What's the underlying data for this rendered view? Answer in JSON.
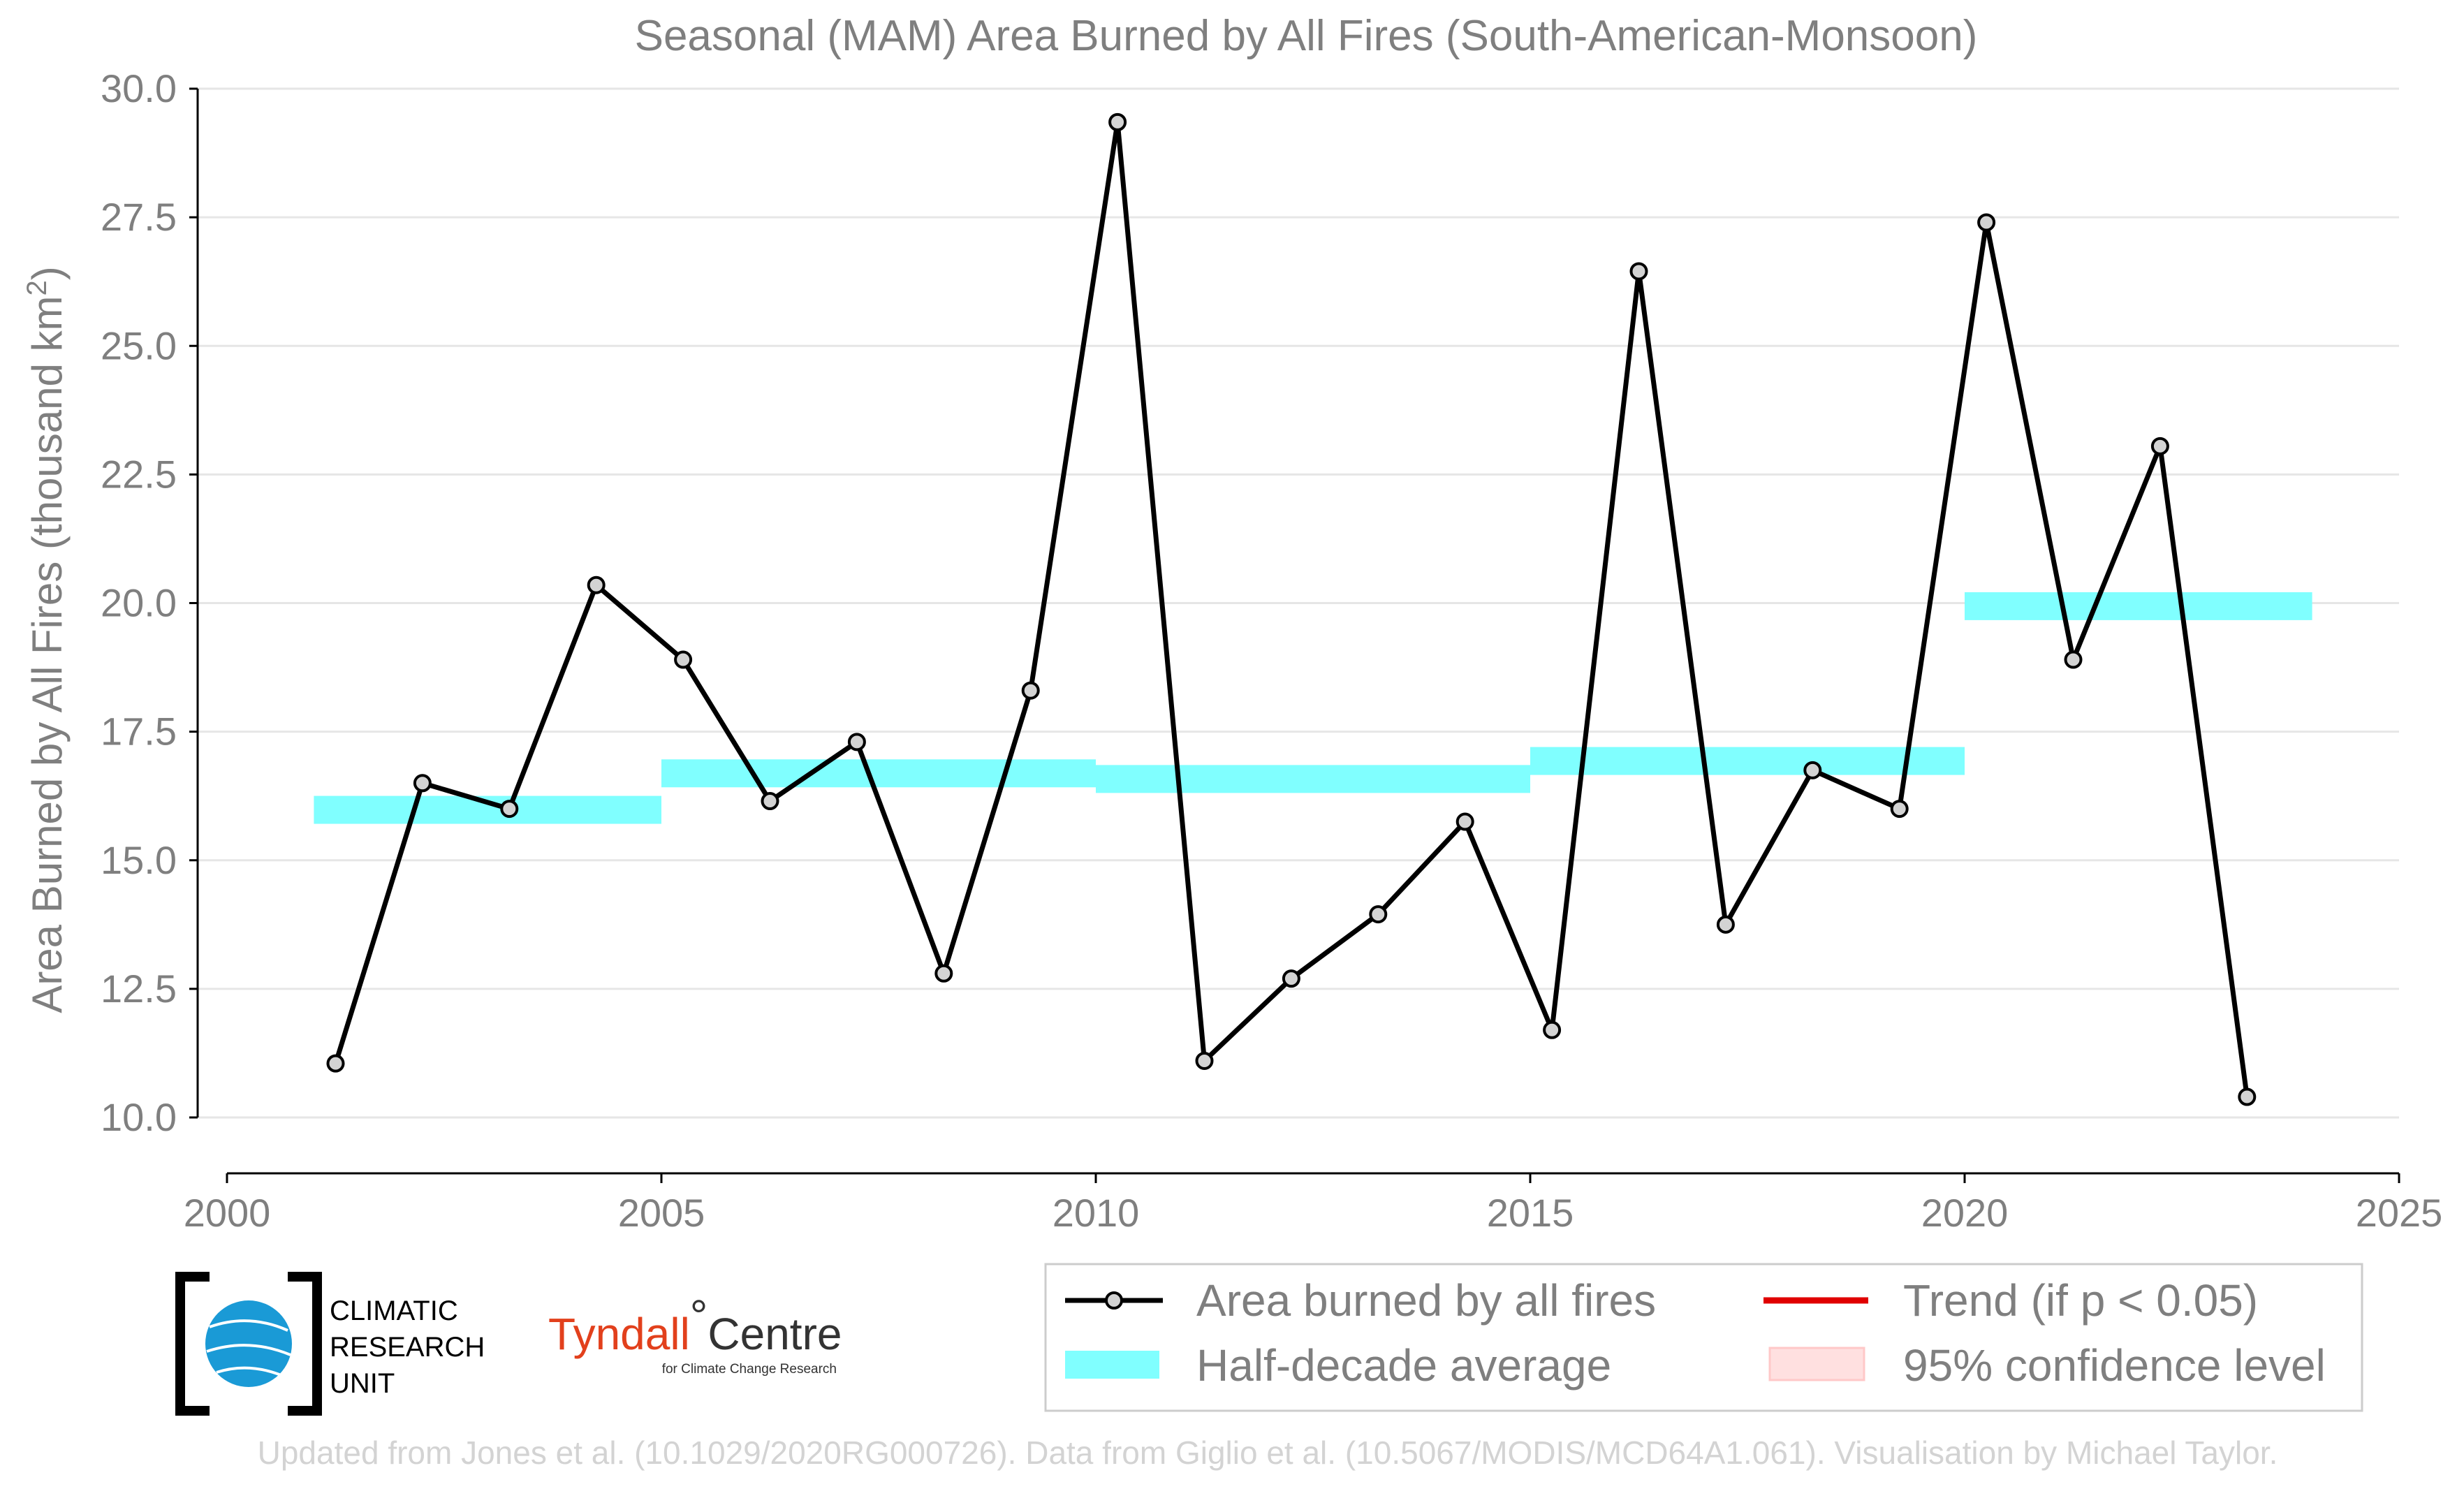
{
  "chart_data": {
    "type": "line",
    "title": "Seasonal (MAM) Area Burned by All Fires (South-American-Monsoon)",
    "xlabel": "",
    "ylabel": "Area Burned by All Fires (thousand km",
    "ylabel_superscript": "2",
    "ylabel_close": ")",
    "xlim": [
      2000,
      2025
    ],
    "ylim": [
      10.0,
      30.0
    ],
    "x_ticks": [
      2000,
      2005,
      2010,
      2015,
      2020,
      2025
    ],
    "y_ticks": [
      10.0,
      12.5,
      15.0,
      17.5,
      20.0,
      22.5,
      25.0,
      27.5,
      30.0
    ],
    "grid": "horizontal",
    "legend_position": "bottom-right",
    "series": [
      {
        "name": "Area burned by all fires",
        "color": "#000000",
        "x": [
          2001.25,
          2002.25,
          2003.25,
          2004.25,
          2005.25,
          2006.25,
          2007.25,
          2008.25,
          2009.25,
          2010.25,
          2011.25,
          2012.25,
          2013.25,
          2014.25,
          2015.25,
          2016.25,
          2017.25,
          2018.25,
          2019.25,
          2020.25,
          2021.25,
          2022.25,
          2023.25
        ],
        "values": [
          11.05,
          16.5,
          16.0,
          20.35,
          18.9,
          16.15,
          17.3,
          12.8,
          18.3,
          29.35,
          11.1,
          12.7,
          13.95,
          15.75,
          11.7,
          26.45,
          13.75,
          16.75,
          16.0,
          27.4,
          18.9,
          23.05,
          10.4
        ]
      }
    ],
    "half_decade_average": {
      "name": "Half-decade average",
      "color": "#80ffff",
      "segments": [
        {
          "x_start": 2001,
          "x_end": 2005,
          "value": 15.98
        },
        {
          "x_start": 2005,
          "x_end": 2010,
          "value": 16.69
        },
        {
          "x_start": 2010,
          "x_end": 2015,
          "value": 16.58
        },
        {
          "x_start": 2015,
          "x_end": 2020,
          "value": 16.93
        },
        {
          "x_start": 2020,
          "x_end": 2024,
          "value": 19.94
        }
      ]
    },
    "legend": [
      {
        "label": "Area burned by all fires",
        "kind": "line-marker",
        "color": "#000000"
      },
      {
        "label": "Trend (if p < 0.05)",
        "kind": "line",
        "color": "#e00000"
      },
      {
        "label": "Half-decade average",
        "kind": "band",
        "color": "#80ffff"
      },
      {
        "label": "95% confidence level",
        "kind": "patch",
        "color": "#ffe0e0"
      }
    ]
  },
  "logos": {
    "cru": [
      "CLIMATIC",
      "RESEARCH",
      "UNIT"
    ],
    "tyndall_name": "Tyndall",
    "tyndall_degree": "°",
    "tyndall_centre": "Centre",
    "tyndall_sub": "for Climate Change Research"
  },
  "credit": "Updated from Jones et al. (10.1029/2020RG000726). Data from Giglio et al. (10.5067/MODIS/MCD64A1.061). Visualisation by Michael Taylor."
}
